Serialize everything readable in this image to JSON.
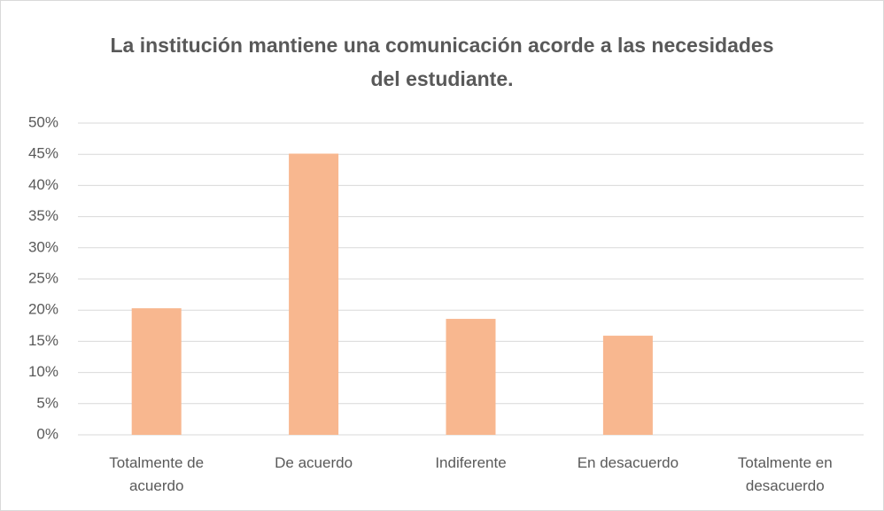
{
  "chart_data": {
    "type": "bar",
    "title": "La institución mantiene una comunicación acorde a las necesidades del estudiante.",
    "categories": [
      "Totalmente de acuerdo",
      "De acuerdo",
      "Indiferente",
      "En desacuerdo",
      "Totalmente en desacuerdo"
    ],
    "values": [
      20.3,
      45.1,
      18.6,
      15.9,
      0
    ],
    "color": "#f8b78f",
    "ylim": [
      0,
      50
    ],
    "yticks": [
      {
        "value": 0,
        "label": "0%"
      },
      {
        "value": 5,
        "label": "5%"
      },
      {
        "value": 10,
        "label": "10%"
      },
      {
        "value": 15,
        "label": "15%"
      },
      {
        "value": 20,
        "label": "20%"
      },
      {
        "value": 25,
        "label": "25%"
      },
      {
        "value": 30,
        "label": "30%"
      },
      {
        "value": 35,
        "label": "35%"
      },
      {
        "value": 40,
        "label": "40%"
      },
      {
        "value": 45,
        "label": "45%"
      },
      {
        "value": 50,
        "label": "50%"
      }
    ],
    "grid": true
  }
}
